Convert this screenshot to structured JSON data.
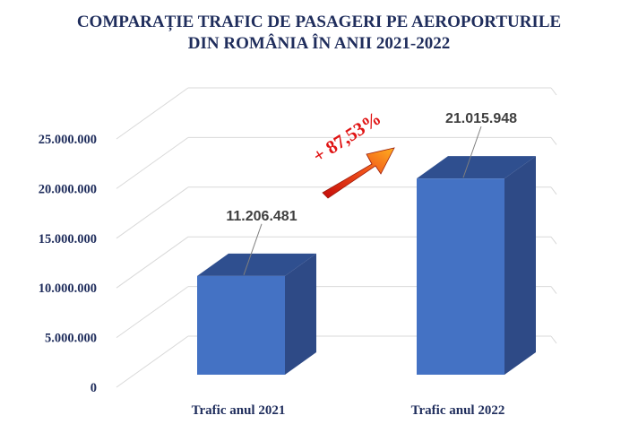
{
  "chart_data": {
    "type": "bar",
    "title_lines": [
      "COMPARAȚIE TRAFIC DE PASAGERI PE AEROPORTURILE",
      "DIN ROMÂNIA ÎN ANII 2021-2022"
    ],
    "categories": [
      "Trafic anul 2021",
      "Trafic anul 2022"
    ],
    "values": [
      11206481,
      21015948
    ],
    "data_labels": [
      "11.206.481",
      "21.015.948"
    ],
    "ylim": [
      0,
      25000000
    ],
    "yticks": [
      0,
      5000000,
      10000000,
      15000000,
      20000000,
      25000000
    ],
    "ytick_labels": [
      "0",
      "5.000.000",
      "10.000.000",
      "15.000.000",
      "20.000.000",
      "25.000.000"
    ],
    "grid": true,
    "annotation": "+ 87,53%",
    "colors": {
      "bar_front": "#4472c4",
      "bar_side": "#2e4a86",
      "bar_top": "#2f4f8f",
      "grid": "#d9d9d9",
      "text": "#1f2d5c",
      "arrow": "#e8320f"
    }
  }
}
